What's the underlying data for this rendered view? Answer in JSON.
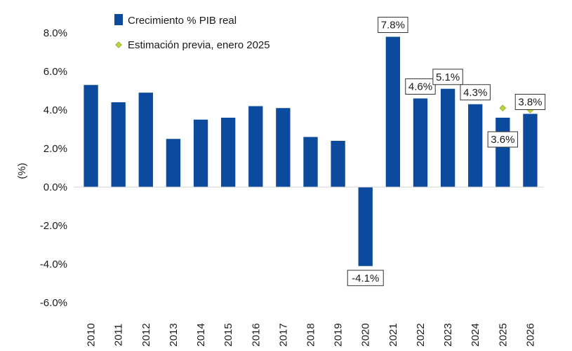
{
  "chart_data": {
    "type": "bar",
    "title": "",
    "xlabel": "",
    "ylabel": "(%)",
    "ylim": [
      -6.0,
      8.0
    ],
    "ytick_step": 2.0,
    "yticks": [
      "8.0%",
      "6.0%",
      "4.0%",
      "2.0%",
      "0.0%",
      "-2.0%",
      "-4.0%",
      "-6.0%"
    ],
    "grid": false,
    "legend_position": "top-left",
    "categories": [
      "2010",
      "2011",
      "2012",
      "2013",
      "2014",
      "2015",
      "2016",
      "2017",
      "2018",
      "2019",
      "2020",
      "2021",
      "2022",
      "2023",
      "2024",
      "2025",
      "2026"
    ],
    "series": [
      {
        "name": "Crecimiento % PIB real",
        "kind": "bar",
        "color": "#0b4a9c",
        "values": [
          5.3,
          4.4,
          4.9,
          2.5,
          3.5,
          3.6,
          4.2,
          4.1,
          2.6,
          2.4,
          -4.1,
          7.8,
          4.6,
          5.1,
          4.3,
          3.6,
          3.8
        ]
      },
      {
        "name": "Estimación previa, enero 2025",
        "kind": "marker",
        "color": "#b8d63c",
        "points": [
          {
            "category": "2025",
            "value": 4.1
          },
          {
            "category": "2026",
            "value": 4.0
          }
        ]
      }
    ],
    "data_labels": [
      {
        "category": "2020",
        "text": "-4.1%",
        "position": "below"
      },
      {
        "category": "2021",
        "text": "7.8%",
        "position": "above"
      },
      {
        "category": "2022",
        "text": "4.6%",
        "position": "above"
      },
      {
        "category": "2023",
        "text": "5.1%",
        "position": "above"
      },
      {
        "category": "2024",
        "text": "4.3%",
        "position": "above"
      },
      {
        "category": "2025",
        "text": "3.6%",
        "position": "below"
      },
      {
        "category": "2026",
        "text": "3.8%",
        "position": "above"
      }
    ]
  }
}
